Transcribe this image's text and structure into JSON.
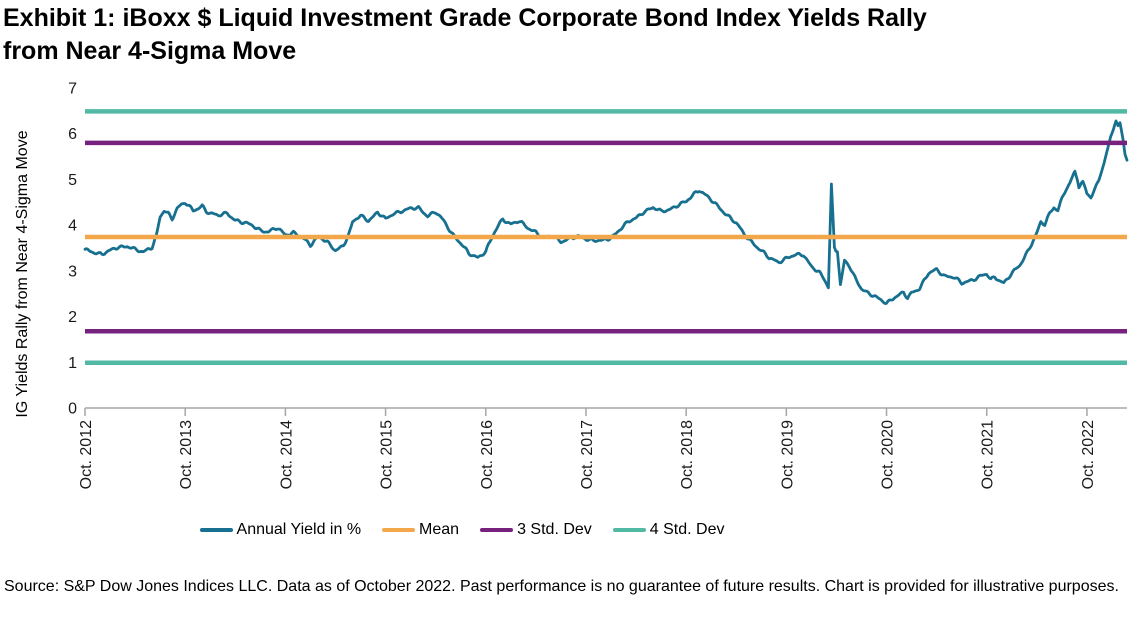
{
  "page": {
    "title_line1": "Exhibit 1: iBoxx $ Liquid Investment Grade Corporate Bond Index Yields Rally",
    "title_line2": "from Near 4-Sigma Move",
    "source_note": "Source: S&P Dow Jones Indices LLC. Data as of October 2022. Past performance is no guarantee of future results. Chart is provided for illustrative purposes."
  },
  "chart_data": {
    "type": "line",
    "title": "Exhibit 1: iBoxx $ Liquid Investment Grade Corporate Bond Index Yields Rally from Near 4-Sigma Move",
    "ylabel": "IG Yields Rally from Near 4-Sigma Move",
    "xlabel": "",
    "ylim": [
      0,
      7
    ],
    "yticks": [
      0,
      1,
      2,
      3,
      4,
      5,
      6,
      7
    ],
    "x_tick_labels": [
      "Oct. 2012",
      "Oct. 2013",
      "Oct. 2014",
      "Oct. 2015",
      "Oct. 2016",
      "Oct. 2017",
      "Oct. 2018",
      "Oct. 2019",
      "Oct. 2020",
      "Oct. 2021",
      "Oct. 2022"
    ],
    "x_span_years": 10.4,
    "grid": false,
    "legend_position": "bottom",
    "axis_color": "#a6a6a6",
    "series": [
      {
        "name": "Annual Yield in %",
        "kind": "line",
        "color": "#17708F",
        "x_unit": "years_after_Oct_2012",
        "points": [
          [
            0.0,
            3.45
          ],
          [
            0.08,
            3.42
          ],
          [
            0.17,
            3.37
          ],
          [
            0.25,
            3.43
          ],
          [
            0.33,
            3.52
          ],
          [
            0.42,
            3.55
          ],
          [
            0.5,
            3.46
          ],
          [
            0.58,
            3.4
          ],
          [
            0.63,
            3.49
          ],
          [
            0.67,
            3.53
          ],
          [
            0.71,
            3.76
          ],
          [
            0.75,
            4.18
          ],
          [
            0.79,
            4.3
          ],
          [
            0.83,
            4.24
          ],
          [
            0.87,
            4.14
          ],
          [
            0.92,
            4.38
          ],
          [
            0.96,
            4.46
          ],
          [
            1.0,
            4.5
          ],
          [
            1.04,
            4.4
          ],
          [
            1.08,
            4.3
          ],
          [
            1.13,
            4.36
          ],
          [
            1.17,
            4.43
          ],
          [
            1.21,
            4.32
          ],
          [
            1.25,
            4.27
          ],
          [
            1.33,
            4.2
          ],
          [
            1.42,
            4.26
          ],
          [
            1.5,
            4.12
          ],
          [
            1.58,
            4.05
          ],
          [
            1.67,
            3.99
          ],
          [
            1.75,
            3.9
          ],
          [
            1.83,
            3.85
          ],
          [
            1.92,
            3.93
          ],
          [
            2.0,
            3.8
          ],
          [
            2.08,
            3.84
          ],
          [
            2.17,
            3.71
          ],
          [
            2.25,
            3.57
          ],
          [
            2.33,
            3.77
          ],
          [
            2.42,
            3.61
          ],
          [
            2.5,
            3.44
          ],
          [
            2.58,
            3.57
          ],
          [
            2.63,
            3.8
          ],
          [
            2.67,
            4.06
          ],
          [
            2.75,
            4.2
          ],
          [
            2.83,
            4.11
          ],
          [
            2.92,
            4.28
          ],
          [
            3.0,
            4.12
          ],
          [
            3.08,
            4.26
          ],
          [
            3.17,
            4.32
          ],
          [
            3.25,
            4.35
          ],
          [
            3.33,
            4.38
          ],
          [
            3.42,
            4.21
          ],
          [
            3.5,
            4.28
          ],
          [
            3.58,
            4.09
          ],
          [
            3.67,
            3.81
          ],
          [
            3.75,
            3.6
          ],
          [
            3.83,
            3.37
          ],
          [
            3.92,
            3.3
          ],
          [
            4.0,
            3.43
          ],
          [
            4.08,
            3.8
          ],
          [
            4.13,
            4.0
          ],
          [
            4.17,
            4.14
          ],
          [
            4.25,
            4.03
          ],
          [
            4.33,
            4.08
          ],
          [
            4.42,
            3.94
          ],
          [
            4.5,
            3.86
          ],
          [
            4.58,
            3.71
          ],
          [
            4.67,
            3.76
          ],
          [
            4.75,
            3.65
          ],
          [
            4.83,
            3.7
          ],
          [
            4.92,
            3.74
          ],
          [
            5.0,
            3.71
          ],
          [
            5.08,
            3.67
          ],
          [
            5.17,
            3.65
          ],
          [
            5.25,
            3.72
          ],
          [
            5.33,
            3.9
          ],
          [
            5.42,
            4.06
          ],
          [
            5.5,
            4.15
          ],
          [
            5.58,
            4.31
          ],
          [
            5.67,
            4.38
          ],
          [
            5.75,
            4.29
          ],
          [
            5.83,
            4.35
          ],
          [
            5.92,
            4.44
          ],
          [
            6.0,
            4.5
          ],
          [
            6.08,
            4.69
          ],
          [
            6.13,
            4.78
          ],
          [
            6.17,
            4.71
          ],
          [
            6.25,
            4.54
          ],
          [
            6.33,
            4.38
          ],
          [
            6.42,
            4.21
          ],
          [
            6.5,
            4.04
          ],
          [
            6.58,
            3.79
          ],
          [
            6.67,
            3.61
          ],
          [
            6.75,
            3.44
          ],
          [
            6.83,
            3.27
          ],
          [
            6.92,
            3.2
          ],
          [
            7.0,
            3.28
          ],
          [
            7.08,
            3.33
          ],
          [
            7.17,
            3.36
          ],
          [
            7.25,
            3.11
          ],
          [
            7.33,
            2.95
          ],
          [
            7.38,
            2.8
          ],
          [
            7.42,
            2.63
          ],
          [
            7.45,
            4.9
          ],
          [
            7.48,
            3.52
          ],
          [
            7.51,
            3.42
          ],
          [
            7.54,
            2.7
          ],
          [
            7.58,
            3.22
          ],
          [
            7.63,
            3.09
          ],
          [
            7.67,
            2.9
          ],
          [
            7.75,
            2.62
          ],
          [
            7.83,
            2.5
          ],
          [
            7.92,
            2.38
          ],
          [
            8.0,
            2.3
          ],
          [
            8.08,
            2.43
          ],
          [
            8.17,
            2.51
          ],
          [
            8.21,
            2.4
          ],
          [
            8.25,
            2.52
          ],
          [
            8.33,
            2.63
          ],
          [
            8.42,
            2.94
          ],
          [
            8.5,
            3.02
          ],
          [
            8.58,
            2.9
          ],
          [
            8.67,
            2.86
          ],
          [
            8.75,
            2.72
          ],
          [
            8.83,
            2.79
          ],
          [
            8.92,
            2.87
          ],
          [
            9.0,
            2.92
          ],
          [
            9.04,
            2.8
          ],
          [
            9.08,
            2.87
          ],
          [
            9.17,
            2.74
          ],
          [
            9.25,
            2.93
          ],
          [
            9.33,
            3.12
          ],
          [
            9.42,
            3.48
          ],
          [
            9.5,
            3.82
          ],
          [
            9.54,
            4.05
          ],
          [
            9.58,
            4.01
          ],
          [
            9.63,
            4.27
          ],
          [
            9.67,
            4.4
          ],
          [
            9.71,
            4.34
          ],
          [
            9.75,
            4.57
          ],
          [
            9.79,
            4.77
          ],
          [
            9.83,
            4.9
          ],
          [
            9.88,
            5.18
          ],
          [
            9.92,
            4.86
          ],
          [
            9.96,
            4.96
          ],
          [
            10.0,
            4.71
          ],
          [
            10.04,
            4.6
          ],
          [
            10.08,
            4.76
          ],
          [
            10.13,
            5.05
          ],
          [
            10.17,
            5.35
          ],
          [
            10.21,
            5.7
          ],
          [
            10.25,
            6.05
          ],
          [
            10.29,
            6.28
          ],
          [
            10.31,
            6.14
          ],
          [
            10.33,
            6.24
          ],
          [
            10.36,
            5.88
          ],
          [
            10.38,
            5.55
          ],
          [
            10.4,
            5.42
          ]
        ]
      },
      {
        "name": "Mean",
        "kind": "hline",
        "color": "#F3A74B",
        "values": [
          3.74
        ]
      },
      {
        "name": "3 Std. Dev",
        "kind": "hline",
        "color": "#76217E",
        "values": [
          5.8,
          1.68
        ]
      },
      {
        "name": "4 Std. Dev",
        "kind": "hline",
        "color": "#52B9A5",
        "values": [
          6.49,
          0.99
        ]
      }
    ]
  }
}
